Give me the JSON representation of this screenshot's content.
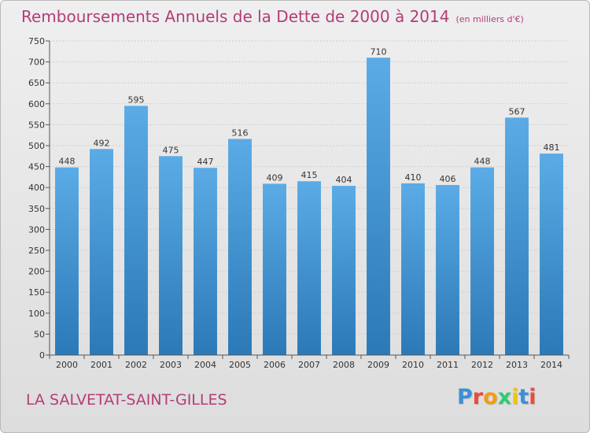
{
  "header": {
    "title": "Remboursements Annuels de la Dette de 2000 à 2014",
    "unit": "(en milliers d'€)"
  },
  "footer": {
    "commune": "LA SALVETAT-SAINT-GILLES",
    "logo_text": "Proxiti"
  },
  "colors": {
    "title": "#b43c78",
    "bar_top": "#5aabe6",
    "bar_bottom": "#2b79b7",
    "grid": "#cfcfcf",
    "axis": "#555555"
  },
  "chart_data": {
    "type": "bar",
    "categories": [
      "2000",
      "2001",
      "2002",
      "2003",
      "2004",
      "2005",
      "2006",
      "2007",
      "2008",
      "2009",
      "2010",
      "2011",
      "2012",
      "2013",
      "2014"
    ],
    "values": [
      448,
      492,
      595,
      475,
      447,
      516,
      409,
      415,
      404,
      710,
      410,
      406,
      448,
      567,
      481
    ],
    "ylim": [
      0,
      750
    ],
    "yticks": [
      0,
      50,
      100,
      150,
      200,
      250,
      300,
      350,
      400,
      450,
      500,
      550,
      600,
      650,
      700,
      750
    ],
    "grid": true,
    "data_labels": true
  }
}
